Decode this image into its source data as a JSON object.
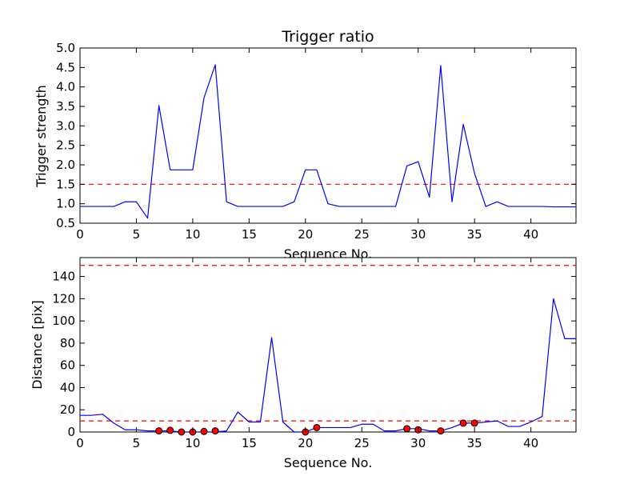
{
  "colors": {
    "line": "#0000ff",
    "threshold": "#ff0000",
    "marker_fill": "#ff0000",
    "marker_edge": "#000000"
  },
  "chart_data": [
    {
      "type": "line",
      "title": "Trigger ratio",
      "xlabel": "Sequence No.",
      "ylabel": "Trigger strength",
      "xlim": [
        0,
        44
      ],
      "ylim": [
        0.5,
        5.0
      ],
      "xticks": [
        "0",
        "5",
        "10",
        "15",
        "20",
        "25",
        "30",
        "35",
        "40"
      ],
      "yticks": [
        "0.5",
        "1.0",
        "1.5",
        "2.0",
        "2.5",
        "3.0",
        "3.5",
        "4.0",
        "4.5",
        "5.0"
      ],
      "grid": false,
      "series": [
        {
          "style": "solid",
          "color": "#0000ff",
          "x": [
            0,
            1,
            2,
            3,
            4,
            5,
            6,
            7,
            8,
            9,
            10,
            11,
            12,
            13,
            14,
            15,
            16,
            17,
            18,
            19,
            20,
            21,
            22,
            23,
            24,
            25,
            26,
            27,
            28,
            29,
            30,
            31,
            32,
            33,
            34,
            35,
            36,
            37,
            38,
            39,
            40,
            41,
            42,
            43,
            44
          ],
          "y": [
            0.93,
            0.93,
            0.93,
            0.93,
            1.05,
            1.05,
            0.63,
            3.52,
            1.87,
            1.87,
            1.87,
            3.72,
            4.57,
            1.05,
            0.93,
            0.93,
            0.93,
            0.93,
            0.93,
            1.05,
            1.87,
            1.87,
            1.0,
            0.93,
            0.93,
            0.93,
            0.93,
            0.93,
            0.93,
            1.97,
            2.08,
            1.17,
            4.55,
            1.05,
            3.04,
            1.78,
            0.93,
            1.05,
            0.93,
            0.93,
            0.93,
            0.93,
            0.92,
            0.92,
            0.92
          ]
        }
      ],
      "hlines": [
        {
          "y": 1.5,
          "style": "dashed",
          "color": "#ff0000"
        }
      ]
    },
    {
      "type": "line",
      "title": "",
      "xlabel": "Sequence No.",
      "ylabel": "Distance [pix]",
      "xlim": [
        0,
        44
      ],
      "ylim": [
        0,
        157
      ],
      "xticks": [
        "0",
        "5",
        "10",
        "15",
        "20",
        "25",
        "30",
        "35",
        "40"
      ],
      "yticks": [
        "0",
        "20",
        "40",
        "60",
        "80",
        "100",
        "120",
        "140"
      ],
      "grid": false,
      "series": [
        {
          "style": "solid",
          "color": "#0000ff",
          "x": [
            0,
            1,
            2,
            3,
            4,
            5,
            6,
            7,
            8,
            9,
            10,
            11,
            12,
            13,
            14,
            15,
            16,
            17,
            18,
            19,
            20,
            21,
            22,
            23,
            24,
            25,
            26,
            27,
            28,
            29,
            30,
            31,
            32,
            33,
            34,
            35,
            36,
            37,
            38,
            39,
            40,
            41,
            42,
            43,
            44
          ],
          "y": [
            15,
            15,
            16,
            8,
            2,
            2,
            1,
            1,
            1,
            0,
            0,
            0,
            0,
            1,
            18,
            9,
            9,
            85,
            9,
            0,
            0,
            4,
            4,
            4,
            4,
            7,
            7,
            1,
            1,
            3,
            3,
            1,
            1,
            4,
            8,
            8,
            9,
            10,
            5,
            5,
            9,
            14,
            120,
            84,
            84
          ]
        }
      ],
      "markers": {
        "color": "#ff0000",
        "x": [
          7,
          8,
          9,
          10,
          11,
          12,
          20,
          21,
          29,
          30,
          32,
          34,
          35
        ],
        "y": [
          1,
          1.5,
          0,
          0,
          0.5,
          1,
          0,
          4,
          3,
          2,
          1,
          8,
          8
        ]
      },
      "hlines": [
        {
          "y": 150,
          "style": "dashed",
          "color": "#ff0000"
        },
        {
          "y": 10,
          "style": "dashed",
          "color": "#ff0000"
        }
      ]
    }
  ]
}
